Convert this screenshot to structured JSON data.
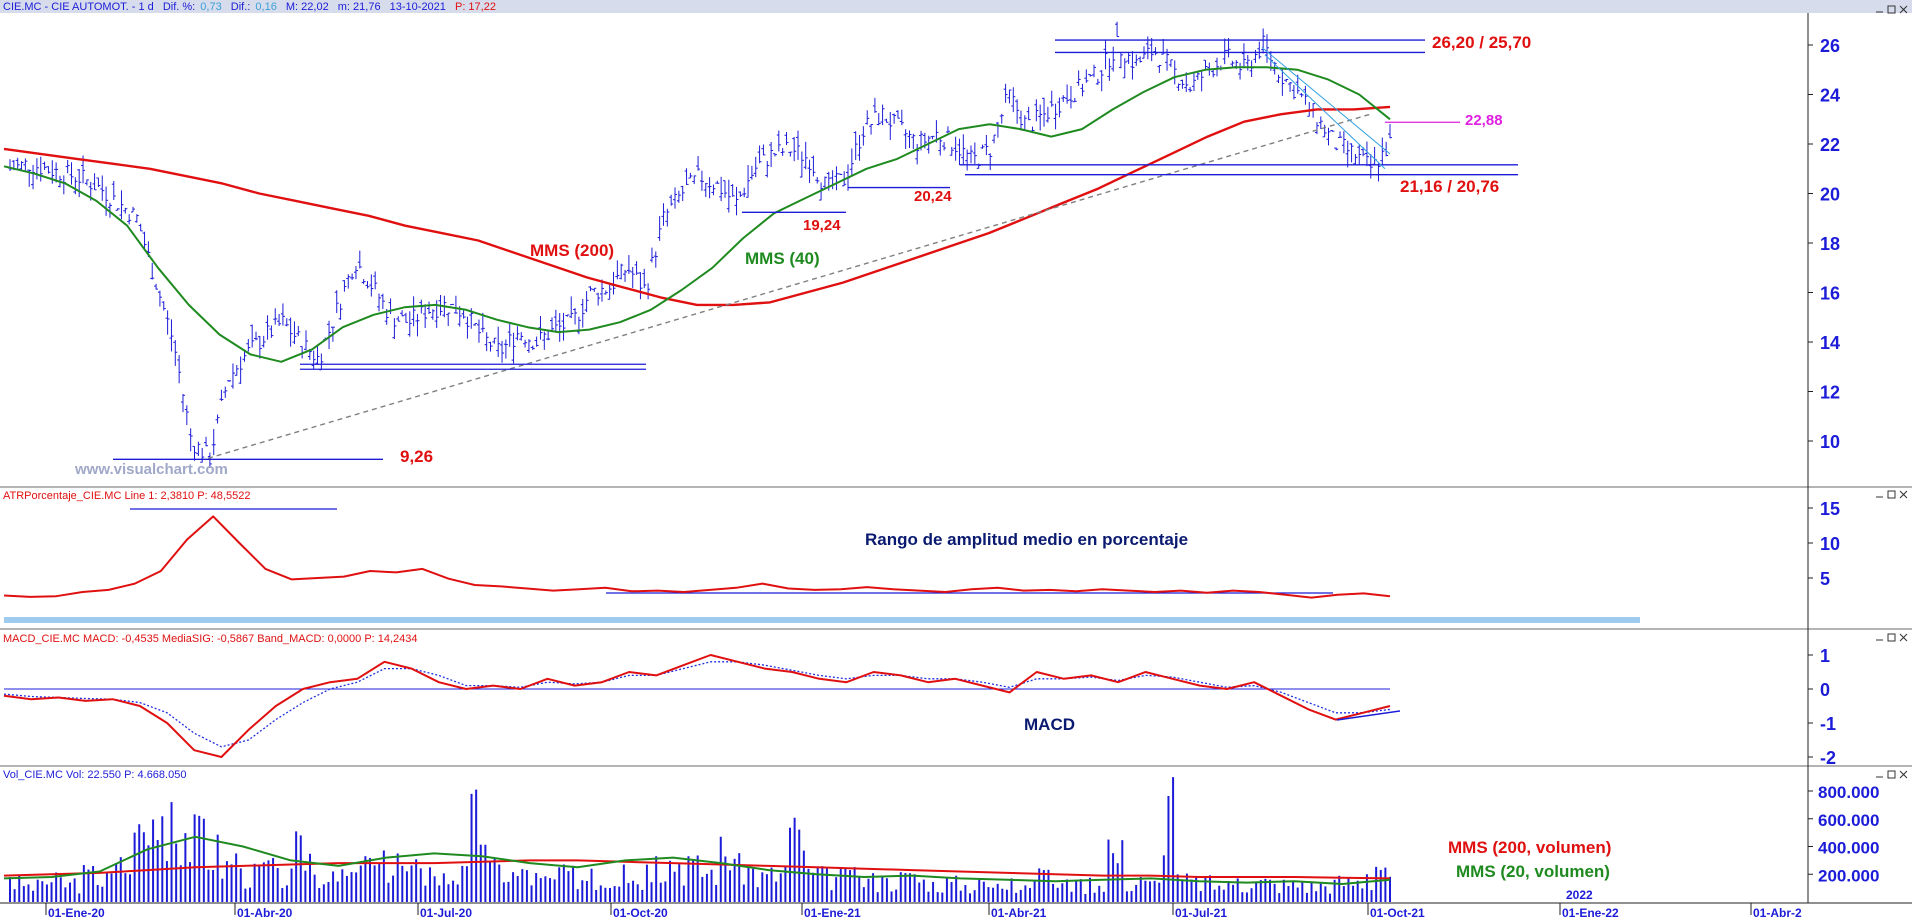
{
  "header": {
    "symbol": "CIE.MC - CIE AUTOMOT. - 1 d",
    "dif_pct_label": "Dif. %:",
    "dif_pct": "0,73",
    "dif_label": "Dif.:",
    "dif": "0,16",
    "max": "M: 22,02",
    "min": "m: 21,76",
    "date": "13-10-2021",
    "price": "P: 17,22"
  },
  "watermark": "www.visualchart.com",
  "colors": {
    "price_bars": "#1c1cd8",
    "mms200": "#e01010",
    "mms40": "#1f8a1f",
    "axis_text": "#1c1cd8",
    "annotation_red": "#e01010",
    "annotation_magenta": "#e020e0",
    "annotation_navy": "#0a1a70"
  },
  "chart_data": [
    {
      "id": "price",
      "type": "line",
      "title": "",
      "x_labels": [
        "01-Ene-20",
        "01-Abr-20",
        "01-Jul-20",
        "01-Oct-20",
        "01-Ene-21",
        "01-Abr-21",
        "01-Jul-21",
        "01-Oct-21",
        "01-Ene-22",
        "01-Abr-2"
      ],
      "extra_x_label": "2022",
      "ylim": [
        8,
        27
      ],
      "y_ticks": [
        10,
        12,
        14,
        16,
        18,
        20,
        22,
        24,
        26
      ],
      "close_series": [
        21.0,
        21.2,
        21.0,
        20.8,
        20.6,
        20.2,
        19.6,
        19.0,
        16.5,
        14.0,
        10.0,
        9.3,
        12.5,
        13.5,
        14.2,
        14.8,
        14.0,
        13.3,
        15.3,
        17.3,
        16.2,
        15.0,
        14.8,
        15.3,
        15.5,
        15.2,
        14.2,
        13.6,
        14.4,
        14.0,
        14.5,
        14.8,
        16.0,
        16.2,
        17.0,
        16.1,
        19.0,
        20.0,
        20.7,
        20.3,
        19.6,
        21.0,
        21.6,
        21.8,
        21.4,
        20.2,
        20.6,
        22.6,
        23.2,
        22.6,
        22.0,
        22.4,
        22.0,
        21.3,
        21.8,
        24.0,
        22.7,
        23.2,
        23.8,
        24.3,
        24.9,
        26.0,
        25.2,
        25.8,
        25.0,
        24.3,
        25.0,
        25.5,
        25.0,
        26.0,
        24.8,
        24.0,
        23.0,
        22.0,
        21.6,
        21.0,
        22.0
      ],
      "series": [
        {
          "name": "MMS (200)",
          "values": [
            21.8,
            21.6,
            21.4,
            21.2,
            21.0,
            20.7,
            20.4,
            20.0,
            19.7,
            19.4,
            19.1,
            18.7,
            18.4,
            18.1,
            17.6,
            17.1,
            16.6,
            16.2,
            15.8,
            15.5,
            15.5,
            15.6,
            16.0,
            16.4,
            16.9,
            17.4,
            17.9,
            18.4,
            19.0,
            19.6,
            20.2,
            20.9,
            21.6,
            22.3,
            22.9,
            23.2,
            23.4,
            23.4,
            23.5
          ]
        },
        {
          "name": "MMS (40)",
          "values": [
            21.1,
            20.8,
            20.4,
            19.7,
            18.7,
            17.0,
            15.5,
            14.3,
            13.5,
            13.2,
            13.7,
            14.6,
            15.1,
            15.4,
            15.5,
            15.3,
            14.9,
            14.6,
            14.4,
            14.5,
            14.8,
            15.3,
            16.1,
            17.0,
            18.2,
            19.2,
            19.8,
            20.4,
            21.0,
            21.4,
            22.0,
            22.6,
            22.8,
            22.6,
            22.3,
            22.6,
            23.4,
            24.1,
            24.7,
            25.0,
            25.1,
            25.1,
            25.0,
            24.6,
            24.0,
            23.0
          ]
        }
      ],
      "annotations": [
        {
          "text": "26,20 / 25,70",
          "values": [
            26.2,
            25.7
          ]
        },
        {
          "text": "22,88",
          "value": 22.88
        },
        {
          "text": "20,24",
          "value": 20.24
        },
        {
          "text": "19,24",
          "value": 19.24
        },
        {
          "text": "21,16 / 20,76",
          "values": [
            21.16,
            20.76
          ]
        },
        {
          "text": "9,26",
          "value": 9.26
        },
        {
          "text": "MMS (200)"
        },
        {
          "text": "MMS (40)"
        }
      ]
    },
    {
      "id": "atr",
      "type": "line",
      "label": "ATRPorcentaje_CIE.MC  Line 1: 2,3810  P: 48,5522",
      "title": "Rango de amplitud medio en porcentaje",
      "ylim": [
        0,
        16
      ],
      "y_ticks": [
        5,
        10,
        15
      ],
      "values": [
        2.5,
        2.3,
        2.4,
        3.0,
        3.3,
        4.2,
        6.0,
        10.5,
        13.8,
        10.0,
        6.3,
        4.8,
        5.0,
        5.2,
        6.0,
        5.8,
        6.3,
        4.9,
        4.0,
        3.8,
        3.5,
        3.2,
        3.4,
        3.6,
        3.1,
        3.2,
        3.0,
        3.3,
        3.6,
        4.2,
        3.5,
        3.3,
        3.4,
        3.7,
        3.4,
        3.2,
        3.0,
        3.4,
        3.6,
        3.2,
        3.3,
        3.1,
        3.4,
        3.2,
        3.0,
        3.2,
        2.9,
        3.2,
        3.0,
        2.6,
        2.2,
        2.6,
        2.8,
        2.4
      ]
    },
    {
      "id": "macd",
      "type": "line",
      "label": "MACD_CIE.MC  MACD: -0,4535  MediaSIG: -0,5867  Band_MACD: 0,0000  P: 14,2434",
      "title": "MACD",
      "ylim": [
        -2.2,
        1.3
      ],
      "y_ticks": [
        1,
        0,
        -1,
        -2
      ],
      "series": [
        {
          "name": "MACD",
          "values": [
            -0.2,
            -0.3,
            -0.25,
            -0.35,
            -0.3,
            -0.5,
            -1.0,
            -1.8,
            -2.0,
            -1.2,
            -0.5,
            0.0,
            0.2,
            0.3,
            0.8,
            0.6,
            0.2,
            0.0,
            0.1,
            0.0,
            0.3,
            0.1,
            0.2,
            0.5,
            0.4,
            0.7,
            1.0,
            0.8,
            0.6,
            0.5,
            0.3,
            0.2,
            0.5,
            0.4,
            0.2,
            0.3,
            0.1,
            -0.1,
            0.5,
            0.3,
            0.4,
            0.2,
            0.5,
            0.3,
            0.1,
            0.0,
            0.2,
            -0.2,
            -0.6,
            -0.9,
            -0.7,
            -0.5
          ]
        },
        {
          "name": "MediaSIG",
          "values": [
            -0.15,
            -0.22,
            -0.25,
            -0.28,
            -0.3,
            -0.4,
            -0.7,
            -1.3,
            -1.7,
            -1.5,
            -0.9,
            -0.4,
            0.0,
            0.2,
            0.6,
            0.6,
            0.4,
            0.1,
            0.1,
            0.05,
            0.2,
            0.15,
            0.2,
            0.4,
            0.4,
            0.6,
            0.8,
            0.8,
            0.7,
            0.55,
            0.4,
            0.3,
            0.4,
            0.4,
            0.3,
            0.3,
            0.2,
            0.05,
            0.3,
            0.3,
            0.35,
            0.25,
            0.4,
            0.35,
            0.2,
            0.05,
            0.1,
            -0.1,
            -0.4,
            -0.7,
            -0.7,
            -0.6
          ]
        }
      ]
    },
    {
      "id": "volume",
      "type": "bar",
      "label": "Vol_CIE.MC  Vol: 22.550  P: 4.668.050",
      "ylim": [
        0,
        850000
      ],
      "y_ticks": [
        800000,
        600000,
        400000,
        200000
      ],
      "y_tick_labels": [
        "800.000",
        "600.000",
        "400.000",
        "200.000"
      ],
      "values": [
        180000,
        150000,
        200000,
        170000,
        260000,
        210000,
        340000,
        560000,
        800000,
        720000,
        600000,
        480000,
        350000,
        260000,
        300000,
        230000,
        480000,
        260000,
        220000,
        260000,
        330000,
        350000,
        300000,
        250000,
        230000,
        260000,
        770000,
        310000,
        260000,
        230000,
        200000,
        250000,
        240000,
        210000,
        270000,
        230000,
        330000,
        400000,
        330000,
        300000,
        470000,
        320000,
        240000,
        260000,
        620000,
        250000,
        230000,
        230000,
        210000,
        190000,
        230000,
        200000,
        170000,
        180000,
        160000,
        150000,
        170000,
        200000,
        230000,
        170000,
        160000,
        190000,
        450000,
        180000,
        170000,
        900000,
        200000,
        180000,
        160000,
        170000,
        190000,
        160000,
        170000,
        150000,
        160000,
        190000,
        200000,
        380000,
        180000
      ],
      "series": [
        {
          "name": "MMS (200, volumen)",
          "values": [
            190000,
            200000,
            210000,
            230000,
            250000,
            260000,
            270000,
            280000,
            280000,
            280000,
            290000,
            300000,
            300000,
            290000,
            280000,
            270000,
            260000,
            250000,
            240000,
            230000,
            220000,
            210000,
            200000,
            190000,
            190000,
            180000,
            180000,
            180000,
            175000,
            170000
          ]
        },
        {
          "name": "MMS (20, volumen)",
          "values": [
            170000,
            180000,
            220000,
            380000,
            470000,
            400000,
            300000,
            260000,
            320000,
            350000,
            330000,
            280000,
            250000,
            300000,
            320000,
            280000,
            230000,
            200000,
            180000,
            190000,
            170000,
            160000,
            150000,
            160000,
            170000,
            150000,
            140000,
            150000,
            130000,
            160000
          ]
        }
      ]
    }
  ]
}
